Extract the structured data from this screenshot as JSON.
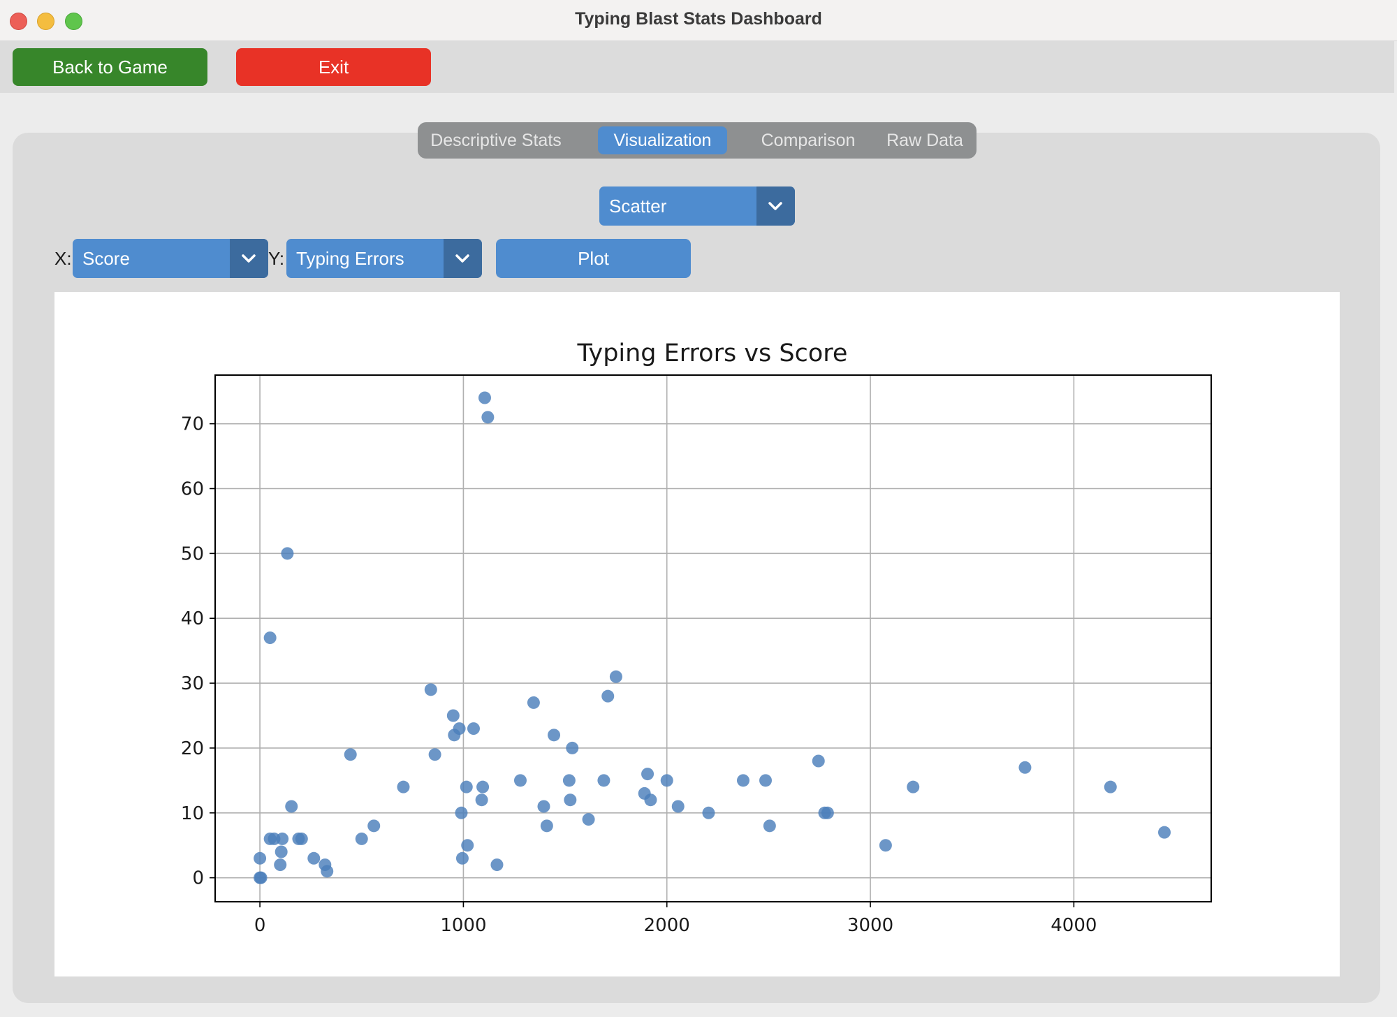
{
  "window": {
    "title": "Typing Blast Stats Dashboard"
  },
  "toolbar": {
    "back_label": "Back to Game",
    "exit_label": "Exit"
  },
  "tabs": [
    {
      "label": "Descriptive Stats",
      "active": false
    },
    {
      "label": "Visualization",
      "active": true
    },
    {
      "label": "Comparison",
      "active": false
    },
    {
      "label": "Raw Data",
      "active": false
    }
  ],
  "controls": {
    "plot_type": "Scatter",
    "x_label": "X:",
    "x_value": "Score",
    "y_label": "Y:",
    "y_value": "Typing Errors",
    "plot_button": "Plot"
  },
  "colors": {
    "accent": "#4f8ccf",
    "back": "#37862a",
    "exit": "#e83226",
    "marker": "#4c7fbb"
  },
  "chart_data": {
    "type": "scatter",
    "title": "Typing Errors vs Score",
    "xlabel": "",
    "ylabel": "",
    "xlim": [
      -220,
      4675
    ],
    "ylim": [
      -3.7,
      77.5
    ],
    "xticks": [
      0,
      1000,
      2000,
      3000,
      4000
    ],
    "yticks": [
      0,
      10,
      20,
      30,
      40,
      50,
      60,
      70
    ],
    "grid": true,
    "points": [
      [
        0,
        0
      ],
      [
        5,
        0
      ],
      [
        0,
        3
      ],
      [
        50,
        6
      ],
      [
        70,
        6
      ],
      [
        110,
        6
      ],
      [
        105,
        4
      ],
      [
        100,
        2
      ],
      [
        50,
        37
      ],
      [
        135,
        50
      ],
      [
        155,
        11
      ],
      [
        190,
        6
      ],
      [
        205,
        6
      ],
      [
        265,
        3
      ],
      [
        320,
        2
      ],
      [
        330,
        1
      ],
      [
        445,
        19
      ],
      [
        500,
        6
      ],
      [
        560,
        8
      ],
      [
        705,
        14
      ],
      [
        840,
        29
      ],
      [
        860,
        19
      ],
      [
        950,
        25
      ],
      [
        955,
        22
      ],
      [
        980,
        23
      ],
      [
        990,
        10
      ],
      [
        995,
        3
      ],
      [
        1015,
        14
      ],
      [
        1020,
        5
      ],
      [
        1050,
        23
      ],
      [
        1090,
        12
      ],
      [
        1095,
        14
      ],
      [
        1105,
        74
      ],
      [
        1120,
        71
      ],
      [
        1165,
        2
      ],
      [
        1280,
        15
      ],
      [
        1345,
        27
      ],
      [
        1395,
        11
      ],
      [
        1410,
        8
      ],
      [
        1445,
        22
      ],
      [
        1520,
        15
      ],
      [
        1525,
        12
      ],
      [
        1535,
        20
      ],
      [
        1615,
        9
      ],
      [
        1690,
        15
      ],
      [
        1710,
        28
      ],
      [
        1750,
        31
      ],
      [
        1890,
        13
      ],
      [
        1905,
        16
      ],
      [
        1920,
        12
      ],
      [
        2000,
        15
      ],
      [
        2055,
        11
      ],
      [
        2205,
        10
      ],
      [
        2375,
        15
      ],
      [
        2485,
        15
      ],
      [
        2505,
        8
      ],
      [
        2745,
        18
      ],
      [
        2775,
        10
      ],
      [
        2790,
        10
      ],
      [
        3075,
        5
      ],
      [
        3210,
        14
      ],
      [
        3760,
        17
      ],
      [
        4180,
        14
      ],
      [
        4445,
        7
      ]
    ]
  }
}
